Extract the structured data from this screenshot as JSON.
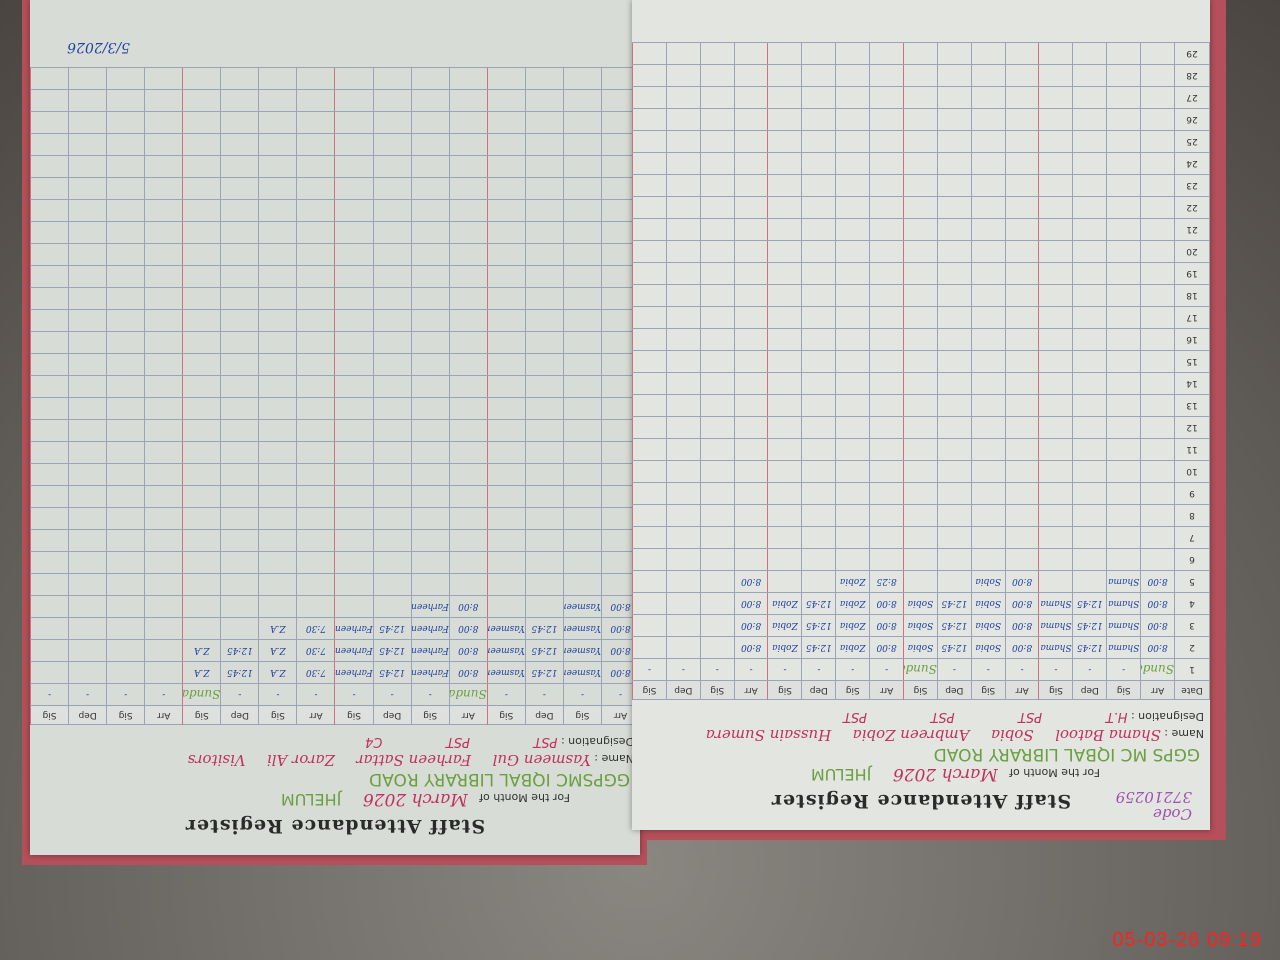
{
  "register": {
    "title": "Staff Attendance Register",
    "code_label": "Code",
    "code": "37210259",
    "month_label": "For the Month of",
    "month": "March 2026",
    "name_label": "Name :",
    "designation_label": "Designation :",
    "date_label": "Date"
  },
  "right_page": {
    "school": "GGPS MC IQBAL LIBRARY ROAD",
    "city": "JHELUM",
    "names": [
      "Shama Batool",
      "Sobia",
      "Ambreen Zobia",
      "Hussain Sumera"
    ],
    "designations": [
      "H.T",
      "PST",
      "PST",
      "PST"
    ],
    "column_headers": [
      "Arr",
      "Sig",
      "Dep",
      "Sig",
      "Arr",
      "Sig",
      "Dep",
      "Sig",
      "Arr",
      "Sig",
      "Dep",
      "Sig",
      "Arr",
      "Sig",
      "Dep",
      "Sig"
    ],
    "row_entries": {
      "1": [
        "Sunday",
        "-",
        "-",
        "-",
        "-",
        "-",
        "-",
        "Sunday",
        "-",
        "-",
        "-",
        "-",
        "-",
        "-",
        "-",
        "-"
      ],
      "2": [
        "8:00",
        "Shama",
        "12:45",
        "Shama",
        "8:00",
        "Sobia",
        "12:45",
        "Sobia",
        "8:00",
        "Zobia",
        "12:45",
        "Zobia",
        "8:00",
        "",
        "",
        ""
      ],
      "3": [
        "8:00",
        "Shama",
        "12:45",
        "Shama",
        "8:00",
        "Sobia",
        "12:45",
        "Sobia",
        "8:00",
        "Zobia",
        "12:45",
        "Zobia",
        "8:00",
        "",
        "",
        ""
      ],
      "4": [
        "8:00",
        "Shama",
        "12:45",
        "Shama",
        "8:00",
        "Sobia",
        "12:45",
        "Sobia",
        "8:00",
        "Zobia",
        "12:45",
        "Zobia",
        "8:00",
        "",
        "",
        ""
      ],
      "5": [
        "8:00",
        "Shama",
        "",
        "",
        "8:00",
        "Sobia",
        "",
        "",
        "8:25",
        "Zobia",
        "",
        "",
        "8:00",
        "",
        "",
        ""
      ]
    }
  },
  "left_page": {
    "school": "GGPSMC IQBAL LIBRARY ROAD",
    "city": "JHELUM",
    "names": [
      "Yasmeen Gul",
      "Farheen Sattar",
      "Zaror Ali",
      "Visitors"
    ],
    "designations": [
      "PST",
      "PST",
      "C4",
      ""
    ],
    "column_headers": [
      "Arr",
      "Sig",
      "Dep",
      "Sig",
      "Arr",
      "Sig",
      "Dep",
      "Sig",
      "Arr",
      "Sig",
      "Dep",
      "Sig",
      "Arr",
      "Sig",
      "Dep",
      "Sig"
    ],
    "row_entries": {
      "1": [
        "-",
        "-",
        "-",
        "-",
        "Sunday",
        "-",
        "-",
        "-",
        "-",
        "-",
        "-",
        "Sunday",
        "-",
        "-",
        "-",
        "-"
      ],
      "2": [
        "8:00",
        "Yasmeen",
        "12:45",
        "Yasmeen",
        "8:00",
        "Farheen",
        "12:45",
        "Farheen",
        "7:30",
        "Z.A",
        "12:45",
        "Z.A",
        "",
        "",
        "",
        ""
      ],
      "3": [
        "8:00",
        "Yasmeen",
        "12:45",
        "Yasmeen",
        "8:00",
        "Farheen",
        "12:45",
        "Farheen",
        "7:30",
        "Z.A",
        "12:45",
        "Z.A",
        "",
        "",
        "",
        ""
      ],
      "4": [
        "8:00",
        "Yasmeen",
        "12:45",
        "Yasmeen",
        "8:00",
        "Farheen",
        "12:45",
        "Farheen",
        "7:30",
        "Z.A",
        "",
        "",
        "",
        "",
        "",
        ""
      ],
      "5": [
        "8:00",
        "Yasmeen",
        "",
        "",
        "8:00",
        "Farheen",
        "",
        "",
        "",
        "",
        "",
        "",
        "",
        "",
        "",
        ""
      ]
    },
    "signature_note": "5/3/2026"
  },
  "days": 29,
  "camera_timestamp": "05-03-26  09:19",
  "colors": {
    "handwriting_blue": "#2040a0",
    "handwriting_pink": "#c03060",
    "handwriting_green": "#6aa040",
    "timestamp": "#ff2020"
  }
}
